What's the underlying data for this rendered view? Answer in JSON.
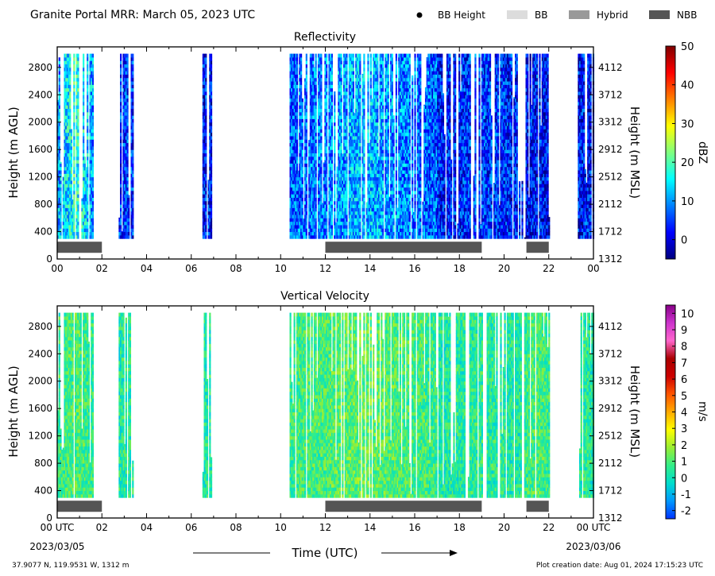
{
  "header": {
    "title": "Granite Portal MRR:  March 05, 2023 UTC",
    "legend": [
      {
        "label": "BB Height",
        "kind": "dot",
        "color": "#000000"
      },
      {
        "label": "BB",
        "kind": "box",
        "color": "#dcdcdc"
      },
      {
        "label": "Hybrid",
        "kind": "box",
        "color": "#999999"
      },
      {
        "label": "NBB",
        "kind": "box",
        "color": "#555555"
      }
    ]
  },
  "footer": {
    "location": "37.9077 N, 119.9531 W, 1312 m",
    "creation": "Plot creation date: Aug 01, 2024 17:15:23 UTC",
    "xlabel": "Time (UTC)",
    "start_tick": "00 UTC",
    "start_date": "2023/03/05",
    "end_tick": "00 UTC",
    "end_date": "2023/03/06"
  },
  "chart_data": [
    {
      "type": "heatmap",
      "title": "Reflectivity",
      "xlabel": "Time (UTC)",
      "ylabel": "Height (m AGL)",
      "ylabel_right": "Height (m MSL)",
      "colorbar_label": "dBZ",
      "x_ticks": [
        "00",
        "02",
        "04",
        "06",
        "08",
        "10",
        "12",
        "14",
        "16",
        "18",
        "20",
        "22",
        "00"
      ],
      "xlim_hours": [
        0,
        24
      ],
      "y_ticks": [
        0,
        400,
        800,
        1200,
        1600,
        2000,
        2400,
        2800
      ],
      "ylim": [
        0,
        3100
      ],
      "y_ticks_right": [
        "1312",
        "1712",
        "2112",
        "2512",
        "2912",
        "3312",
        "3712",
        "4112"
      ],
      "colorbar_range": [
        -5,
        50
      ],
      "colorbar_ticks": [
        "0",
        "10",
        "20",
        "30",
        "40",
        "50"
      ],
      "colorbar_colors": [
        "#00007f",
        "#0000ff",
        "#0080ff",
        "#00ffff",
        "#7fff7f",
        "#ffff00",
        "#ff8000",
        "#ff0000",
        "#7f0000"
      ],
      "precip_top_agl": 3000,
      "precip_bottom_agl": 300,
      "precip_periods": [
        {
          "start": 0.0,
          "end": 1.6,
          "level": 18
        },
        {
          "start": 2.75,
          "end": 3.4,
          "level": 6
        },
        {
          "start": 6.5,
          "end": 6.9,
          "level": 4
        },
        {
          "start": 10.4,
          "end": 17.0,
          "level": 12
        },
        {
          "start": 17.0,
          "end": 20.8,
          "level": 5
        },
        {
          "start": 20.9,
          "end": 22.0,
          "level": 3
        },
        {
          "start": 23.3,
          "end": 24.0,
          "level": 3
        }
      ],
      "bright_band_type": [
        {
          "start": 0.0,
          "end": 2.0,
          "type": "NBB"
        },
        {
          "start": 12.0,
          "end": 19.0,
          "type": "NBB"
        },
        {
          "start": 21.0,
          "end": 22.0,
          "type": "NBB"
        }
      ]
    },
    {
      "type": "heatmap",
      "title": "Vertical Velocity",
      "xlabel": "Time (UTC)",
      "ylabel": "Height (m AGL)",
      "ylabel_right": "Height (m MSL)",
      "colorbar_label": "m/s",
      "x_ticks": [
        "00 UTC",
        "02",
        "04",
        "06",
        "08",
        "10",
        "12",
        "14",
        "16",
        "18",
        "20",
        "22",
        "00 UTC"
      ],
      "xlim_hours": [
        0,
        24
      ],
      "y_ticks": [
        0,
        400,
        800,
        1200,
        1600,
        2000,
        2400,
        2800
      ],
      "ylim": [
        0,
        3100
      ],
      "y_ticks_right": [
        "1312",
        "1712",
        "2112",
        "2512",
        "2912",
        "3312",
        "3712",
        "4112"
      ],
      "colorbar_range": [
        -2.5,
        10.5
      ],
      "colorbar_ticks": [
        "-2",
        "-1",
        "0",
        "1",
        "2",
        "3",
        "4",
        "5",
        "6",
        "7",
        "8",
        "9",
        "10"
      ],
      "colorbar_colors": [
        "#0033ff",
        "#0099ff",
        "#00ddcc",
        "#33ee88",
        "#99ee33",
        "#ffff00",
        "#ffaa00",
        "#ff5500",
        "#cc0000",
        "#aa0000",
        "#ff66cc",
        "#cc33cc",
        "#880088"
      ],
      "precip_top_agl": 3000,
      "precip_bottom_agl": 300,
      "precip_periods": [
        {
          "start": 0.0,
          "end": 1.6,
          "level": 1
        },
        {
          "start": 2.75,
          "end": 3.4,
          "level": 0.5
        },
        {
          "start": 6.5,
          "end": 6.9,
          "level": 0.3
        },
        {
          "start": 10.4,
          "end": 17.0,
          "level": 1.2
        },
        {
          "start": 17.0,
          "end": 20.8,
          "level": 0.5
        },
        {
          "start": 20.9,
          "end": 22.0,
          "level": 1
        },
        {
          "start": 23.3,
          "end": 24.0,
          "level": 0.5
        }
      ],
      "bright_band_type": [
        {
          "start": 0.0,
          "end": 2.0,
          "type": "NBB"
        },
        {
          "start": 12.0,
          "end": 19.0,
          "type": "NBB"
        },
        {
          "start": 21.0,
          "end": 22.0,
          "type": "NBB"
        }
      ]
    }
  ]
}
